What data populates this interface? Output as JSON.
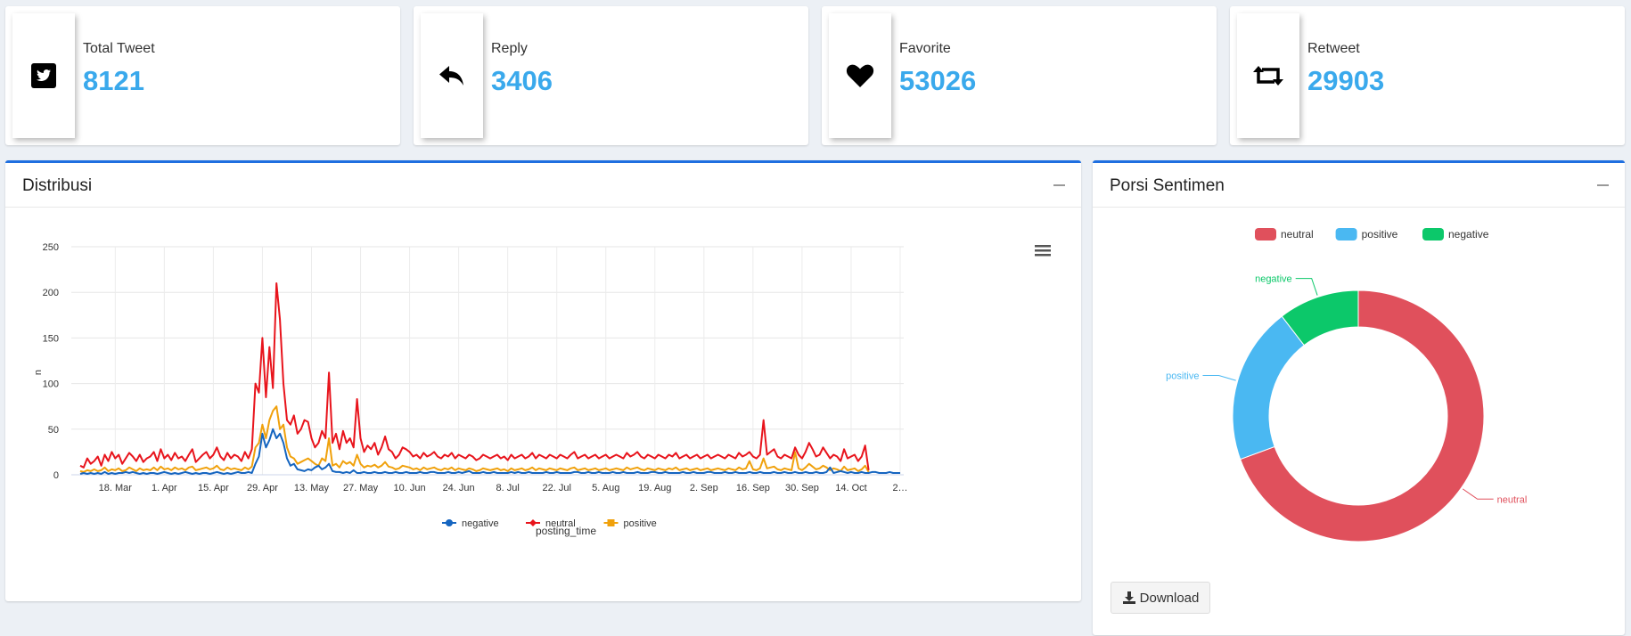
{
  "stats": [
    {
      "label": "Total Tweet",
      "value": "8121",
      "icon": "twitter-icon"
    },
    {
      "label": "Reply",
      "value": "3406",
      "icon": "reply-icon"
    },
    {
      "label": "Favorite",
      "value": "53026",
      "icon": "heart-icon"
    },
    {
      "label": "Retweet",
      "value": "29903",
      "icon": "retweet-icon"
    }
  ],
  "distribusi": {
    "title": "Distribusi"
  },
  "porsi": {
    "title": "Porsi Sentimen",
    "download_label": "Download"
  },
  "colors": {
    "accent": "#3aa9ec",
    "panel_border": "#1f6fe0",
    "negative_line": "#1565c0",
    "neutral_line": "#e8141c",
    "positive_line": "#f0a10c",
    "pie_neutral": "#e0505c",
    "pie_positive": "#4ab8f2",
    "pie_negative": "#0cc86a"
  },
  "chart_data": [
    {
      "type": "line",
      "title": "",
      "xlabel": "posting_time",
      "ylabel": "n",
      "ylim": [
        0,
        250
      ],
      "yticks": [
        0,
        50,
        100,
        150,
        200,
        250
      ],
      "xtick_labels": [
        "18. Mar",
        "1. Apr",
        "15. Apr",
        "29. Apr",
        "13. May",
        "27. May",
        "10. Jun",
        "24. Jun",
        "8. Jul",
        "22. Jul",
        "5. Aug",
        "19. Aug",
        "2. Sep",
        "16. Sep",
        "30. Sep",
        "14. Oct",
        "2…"
      ],
      "x_start": "2019-03-08",
      "series": [
        {
          "name": "negative",
          "values": [
            1,
            2,
            1,
            2,
            1,
            2,
            1,
            3,
            1,
            2,
            1,
            2,
            2,
            3,
            2,
            3,
            2,
            1,
            2,
            1,
            2,
            2,
            1,
            2,
            3,
            2,
            1,
            2,
            1,
            2,
            3,
            2,
            1,
            2,
            1,
            2,
            2,
            1,
            2,
            3,
            2,
            1,
            2,
            1,
            2,
            3,
            2,
            2,
            3,
            2,
            12,
            20,
            45,
            30,
            38,
            50,
            40,
            45,
            35,
            18,
            10,
            12,
            6,
            5,
            4,
            6,
            5,
            8,
            10,
            6,
            8,
            12,
            4,
            3,
            3,
            2,
            3,
            2,
            5,
            2,
            2,
            3,
            2,
            2,
            3,
            2,
            2,
            3,
            2,
            2,
            3,
            2,
            2,
            3,
            2,
            2,
            2,
            3,
            2,
            2,
            3,
            3,
            2,
            2,
            2,
            3,
            2,
            2,
            3,
            2,
            3,
            4,
            2,
            2,
            2,
            3,
            2,
            2,
            3,
            2,
            2,
            2,
            2,
            3,
            2,
            3,
            2,
            2,
            3,
            2,
            2,
            2,
            2,
            3,
            2,
            2,
            3,
            2,
            2,
            2,
            2,
            3,
            3,
            2,
            2,
            3,
            2,
            2,
            3,
            2,
            2,
            2,
            3,
            2,
            2,
            3,
            2,
            2,
            2,
            3,
            2,
            2,
            2,
            3,
            3,
            2,
            2,
            3,
            2,
            2,
            2,
            2,
            3,
            2,
            2,
            3,
            2,
            2,
            2,
            3,
            3,
            2,
            2,
            2,
            3,
            2,
            2,
            3,
            2,
            2,
            2,
            3,
            2,
            2,
            3,
            2,
            2,
            2,
            3,
            2,
            2,
            3,
            2,
            2,
            3,
            2,
            2,
            3,
            2,
            2,
            3,
            2,
            2,
            3,
            8,
            2,
            3,
            4,
            3,
            2,
            3,
            2,
            2,
            3,
            2,
            2,
            3,
            3,
            2,
            2,
            2,
            3,
            2,
            2,
            2
          ]
        },
        {
          "name": "neutral",
          "values": [
            10,
            8,
            18,
            12,
            15,
            20,
            10,
            22,
            15,
            25,
            18,
            22,
            12,
            18,
            24,
            20,
            15,
            22,
            14,
            18,
            20,
            25,
            15,
            28,
            18,
            22,
            16,
            24,
            18,
            20,
            15,
            22,
            28,
            14,
            18,
            22,
            25,
            18,
            22,
            30,
            20,
            16,
            24,
            18,
            22,
            20,
            15,
            25,
            18,
            28,
            100,
            90,
            150,
            85,
            140,
            95,
            210,
            170,
            100,
            60,
            55,
            65,
            45,
            50,
            60,
            58,
            40,
            30,
            35,
            48,
            40,
            112,
            35,
            45,
            28,
            48,
            35,
            40,
            30,
            83,
            40,
            25,
            32,
            28,
            35,
            22,
            30,
            42,
            28,
            25,
            18,
            22,
            30,
            28,
            25,
            20,
            22,
            18,
            24,
            20,
            22,
            25,
            20,
            18,
            22,
            20,
            24,
            18,
            22,
            20,
            18,
            22,
            20,
            16,
            18,
            22,
            20,
            18,
            20,
            22,
            18,
            20,
            16,
            22,
            18,
            20,
            22,
            18,
            20,
            24,
            18,
            22,
            20,
            18,
            22,
            20,
            18,
            22,
            20,
            18,
            22,
            25,
            18,
            20,
            22,
            18,
            20,
            22,
            18,
            20,
            22,
            18,
            20,
            22,
            20,
            18,
            24,
            20,
            22,
            25,
            20,
            18,
            22,
            20,
            18,
            22,
            20,
            18,
            22,
            20,
            24,
            18,
            20,
            22,
            18,
            20,
            22,
            18,
            20,
            22,
            18,
            20,
            22,
            20,
            18,
            22,
            20,
            18,
            24,
            20,
            22,
            25,
            20,
            18,
            22,
            60,
            22,
            25,
            28,
            20,
            18,
            22,
            20,
            18,
            30,
            22,
            18,
            25,
            35,
            28,
            20,
            22,
            30,
            24,
            18,
            22,
            20,
            15,
            28,
            18,
            20,
            22,
            15,
            20,
            32,
            5
          ]
        },
        {
          "name": "positive",
          "values": [
            4,
            3,
            5,
            4,
            6,
            4,
            5,
            8,
            4,
            6,
            5,
            7,
            4,
            5,
            8,
            6,
            4,
            7,
            5,
            6,
            5,
            8,
            5,
            9,
            6,
            7,
            5,
            8,
            6,
            7,
            5,
            8,
            9,
            5,
            6,
            7,
            8,
            6,
            7,
            10,
            6,
            5,
            8,
            6,
            7,
            6,
            5,
            8,
            6,
            9,
            30,
            35,
            55,
            40,
            60,
            70,
            75,
            50,
            55,
            30,
            20,
            18,
            12,
            14,
            16,
            18,
            15,
            12,
            10,
            18,
            15,
            40,
            10,
            12,
            8,
            15,
            12,
            14,
            10,
            22,
            12,
            8,
            10,
            9,
            11,
            8,
            10,
            14,
            9,
            8,
            6,
            7,
            10,
            9,
            8,
            6,
            7,
            5,
            8,
            6,
            7,
            8,
            6,
            5,
            7,
            6,
            8,
            5,
            7,
            6,
            5,
            7,
            6,
            4,
            5,
            7,
            6,
            5,
            6,
            7,
            5,
            6,
            4,
            7,
            5,
            6,
            7,
            5,
            6,
            8,
            5,
            7,
            6,
            5,
            7,
            6,
            5,
            7,
            6,
            5,
            7,
            8,
            5,
            6,
            7,
            5,
            6,
            7,
            5,
            6,
            7,
            5,
            6,
            7,
            6,
            5,
            8,
            6,
            7,
            8,
            6,
            5,
            7,
            6,
            5,
            7,
            6,
            5,
            7,
            6,
            8,
            5,
            6,
            7,
            5,
            6,
            7,
            5,
            6,
            7,
            5,
            6,
            7,
            6,
            5,
            7,
            6,
            5,
            8,
            6,
            7,
            15,
            6,
            5,
            7,
            18,
            7,
            8,
            9,
            6,
            5,
            7,
            6,
            5,
            25,
            7,
            5,
            8,
            12,
            9,
            6,
            7,
            10,
            8,
            5,
            7,
            6,
            4,
            9,
            5,
            6,
            7,
            4,
            6,
            10,
            3
          ]
        }
      ]
    },
    {
      "type": "pie",
      "donut": true,
      "categories": [
        "neutral",
        "positive",
        "negative"
      ],
      "values": [
        69.4,
        20.2,
        10.4
      ],
      "legend": "top-center"
    }
  ]
}
